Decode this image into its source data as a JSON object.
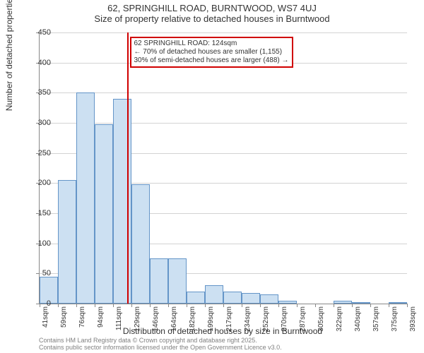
{
  "title": {
    "main": "62, SPRINGHILL ROAD, BURNTWOOD, WS7 4UJ",
    "sub": "Size of property relative to detached houses in Burntwood"
  },
  "chart": {
    "type": "histogram",
    "background_color": "#ffffff",
    "grid_color": "#d3d3d3",
    "axis_color": "#888888",
    "bar_fill": "#cce0f2",
    "bar_border": "#6495c8",
    "marker_color": "#d00000",
    "y": {
      "label": "Number of detached properties",
      "min": 0,
      "max": 450,
      "tick_step": 50,
      "ticks": [
        0,
        50,
        100,
        150,
        200,
        250,
        300,
        350,
        400,
        450
      ]
    },
    "x": {
      "label": "Distribution of detached houses by size in Burntwood",
      "ticks": [
        "41sqm",
        "59sqm",
        "76sqm",
        "94sqm",
        "111sqm",
        "129sqm",
        "146sqm",
        "164sqm",
        "182sqm",
        "199sqm",
        "217sqm",
        "234sqm",
        "252sqm",
        "270sqm",
        "287sqm",
        "305sqm",
        "322sqm",
        "340sqm",
        "357sqm",
        "375sqm",
        "393sqm"
      ]
    },
    "bars": [
      45,
      205,
      350,
      298,
      340,
      198,
      75,
      75,
      20,
      30,
      20,
      18,
      15,
      5,
      0,
      0,
      5,
      2,
      0,
      2
    ],
    "marker_bin_index": 4,
    "callout": {
      "line1": "62 SPRINGHILL ROAD: 124sqm",
      "line2": "← 70% of detached houses are smaller (1,155)",
      "line3": "30% of semi-detached houses are larger (488) →"
    }
  },
  "footer": {
    "line1": "Contains HM Land Registry data © Crown copyright and database right 2025.",
    "line2": "Contains public sector information licensed under the Open Government Licence v3.0."
  },
  "fonts": {
    "title_size": 13,
    "axis_label_size": 12,
    "tick_size": 11,
    "callout_size": 10,
    "footer_size": 9
  }
}
